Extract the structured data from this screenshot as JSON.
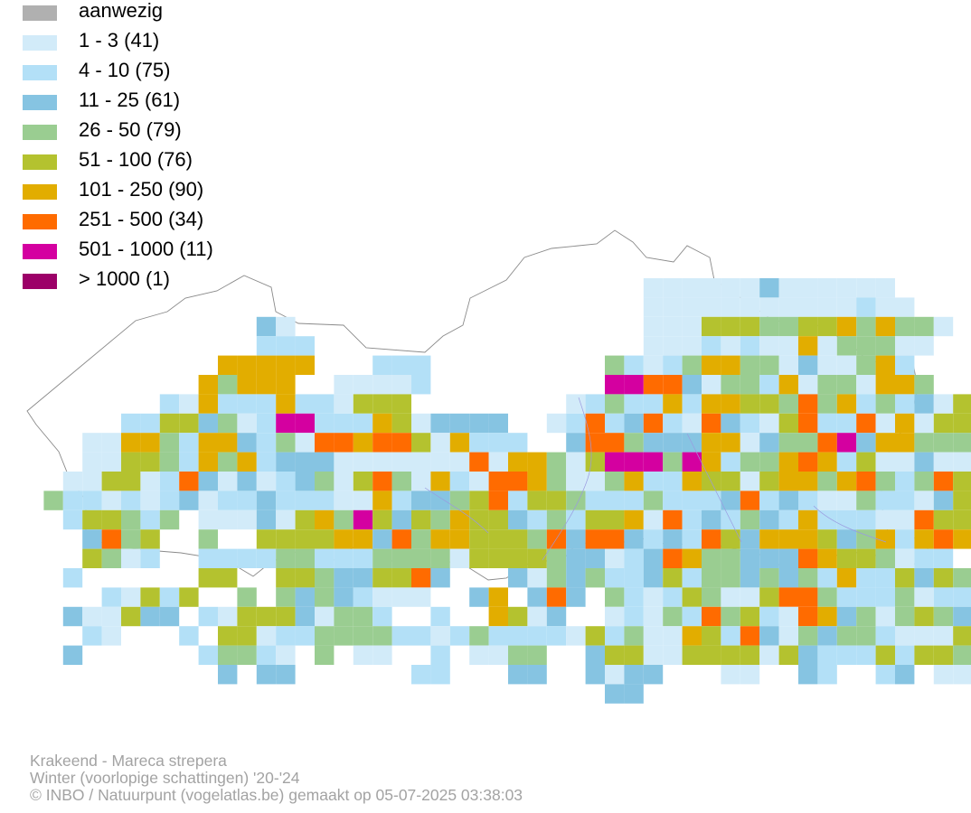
{
  "legend": [
    {
      "label": "aanwezig",
      "color": "#b0b0b0"
    },
    {
      "label": "1 - 3 (41)",
      "color": "#d2ebf9"
    },
    {
      "label": "4 - 10 (75)",
      "color": "#b3e0f7"
    },
    {
      "label": "11 - 25 (61)",
      "color": "#86c4e2"
    },
    {
      "label": "26 - 50 (79)",
      "color": "#9acd91"
    },
    {
      "label": "51 - 100 (76)",
      "color": "#b4c22f"
    },
    {
      "label": "101 - 250 (90)",
      "color": "#e2ad00"
    },
    {
      "label": "251 - 500 (34)",
      "color": "#ff6b00"
    },
    {
      "label": "501 - 1000 (11)",
      "color": "#d400a0"
    },
    {
      "label": "> 1000 (1)",
      "color": "#9c0068"
    }
  ],
  "footer": {
    "line1": "Krakeend - Mareca strepera",
    "line2": "Winter (voorlopige schattingen) '20-'24",
    "line3": "© INBO / Natuurpunt (vogelatlas.be) gemaakt op 05-07-2025 03:38:03"
  }
}
